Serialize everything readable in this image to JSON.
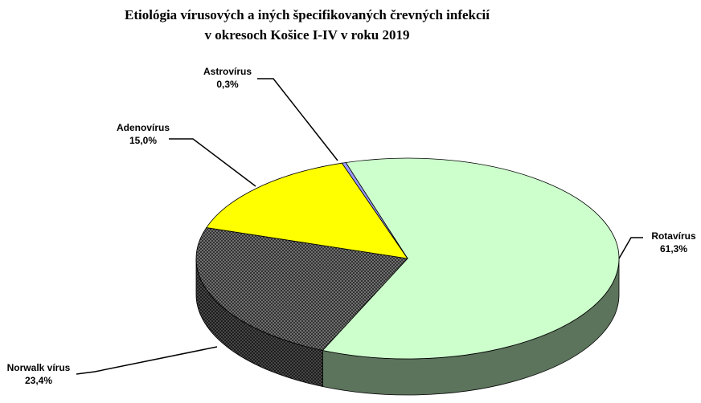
{
  "chart_data": {
    "type": "pie",
    "title": [
      "Etiológia  vírusových a iných špecifikovaných črevných infekcií",
      "v okresoch Košice I-IV v roku 2019"
    ],
    "categories": [
      "Rotavírus",
      "Norwalk vírus",
      "Adenovírus",
      "Astrovírus"
    ],
    "values": [
      61.3,
      23.4,
      15.0,
      0.3
    ],
    "value_labels": [
      "61,3%",
      "23,4%",
      "15,0%",
      "0,3%"
    ],
    "colors": [
      "#ccffcc",
      "#808080",
      "#ffff00",
      "#9999ff"
    ]
  }
}
